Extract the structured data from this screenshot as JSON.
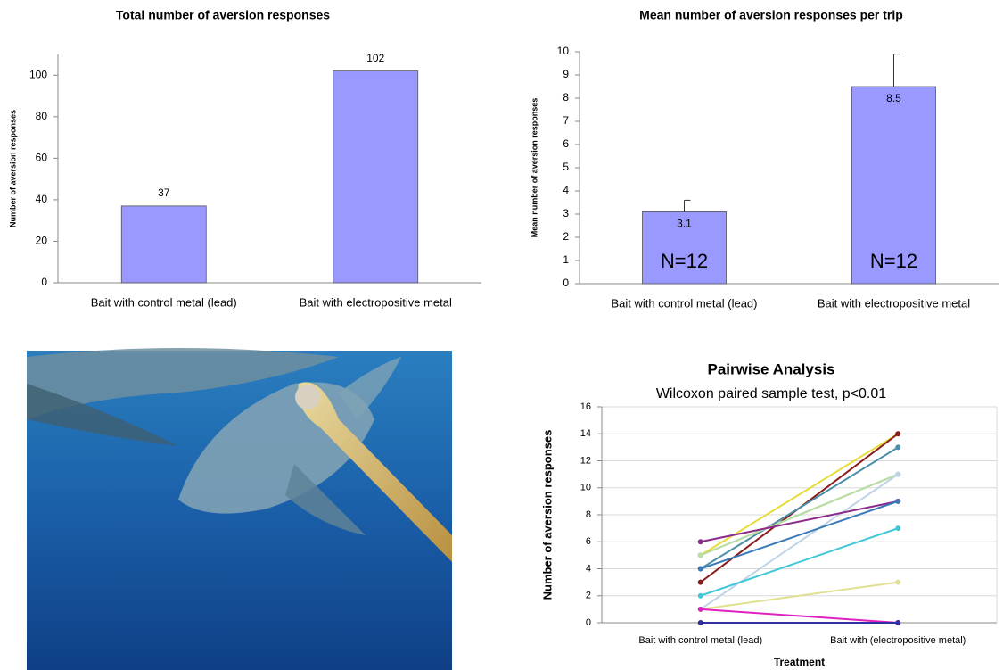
{
  "chart_data": [
    {
      "type": "bar",
      "title": "Total number of aversion responses",
      "y_label": "Number of aversion responses",
      "categories": [
        "Bait with control metal (lead)",
        "Bait with electropositive metal"
      ],
      "values": [
        37,
        102
      ],
      "color": "#9999ff",
      "ylim": [
        0,
        110
      ],
      "yticks": [
        0,
        20,
        40,
        60,
        80,
        100
      ]
    },
    {
      "type": "bar",
      "title": "Mean number of aversion responses per trip",
      "y_label": "Mean number of aversion responses",
      "categories": [
        "Bait with control metal (lead)",
        "Bait with electropositive metal"
      ],
      "values": [
        3.1,
        8.5
      ],
      "errors": [
        0.5,
        1.4
      ],
      "annotations": [
        "N=12",
        "N=12"
      ],
      "color": "#9999ff",
      "ylim": [
        0,
        10
      ],
      "yticks": [
        0,
        1,
        2,
        3,
        4,
        5,
        6,
        7,
        8,
        9,
        10
      ]
    },
    {
      "type": "line",
      "title": "Pairwise Analysis",
      "subtitle": "Wilcoxon paired sample test, p<0.01",
      "x_label": "Treatment",
      "y_label": "Number of aversion responses",
      "categories": [
        "Bait with control metal (lead)",
        "Bait with (electropositive metal)"
      ],
      "series": [
        {
          "color": "#e8dc3a",
          "values": [
            5,
            14
          ]
        },
        {
          "color": "#8b1a1a",
          "values": [
            3,
            14
          ]
        },
        {
          "color": "#4a8fa8",
          "values": [
            4,
            13
          ]
        },
        {
          "color": "#9a9a9a",
          "values": [
            5,
            11
          ]
        },
        {
          "color": "#b8e0a0",
          "values": [
            5,
            11
          ]
        },
        {
          "color": "#c0d4e8",
          "values": [
            1,
            11
          ]
        },
        {
          "color": "#8b2a8b",
          "values": [
            6,
            9
          ]
        },
        {
          "color": "#3a7ab8",
          "values": [
            4,
            9
          ]
        },
        {
          "color": "#40c8d8",
          "values": [
            2,
            7
          ]
        },
        {
          "color": "#e0e090",
          "values": [
            1,
            3
          ]
        },
        {
          "color": "#e020c0",
          "values": [
            1,
            0
          ]
        },
        {
          "color": "#3030a0",
          "values": [
            0,
            0
          ]
        }
      ],
      "ylim": [
        0,
        16
      ],
      "yticks": [
        0,
        2,
        4,
        6,
        8,
        10,
        12,
        14,
        16
      ],
      "grid": true
    }
  ]
}
